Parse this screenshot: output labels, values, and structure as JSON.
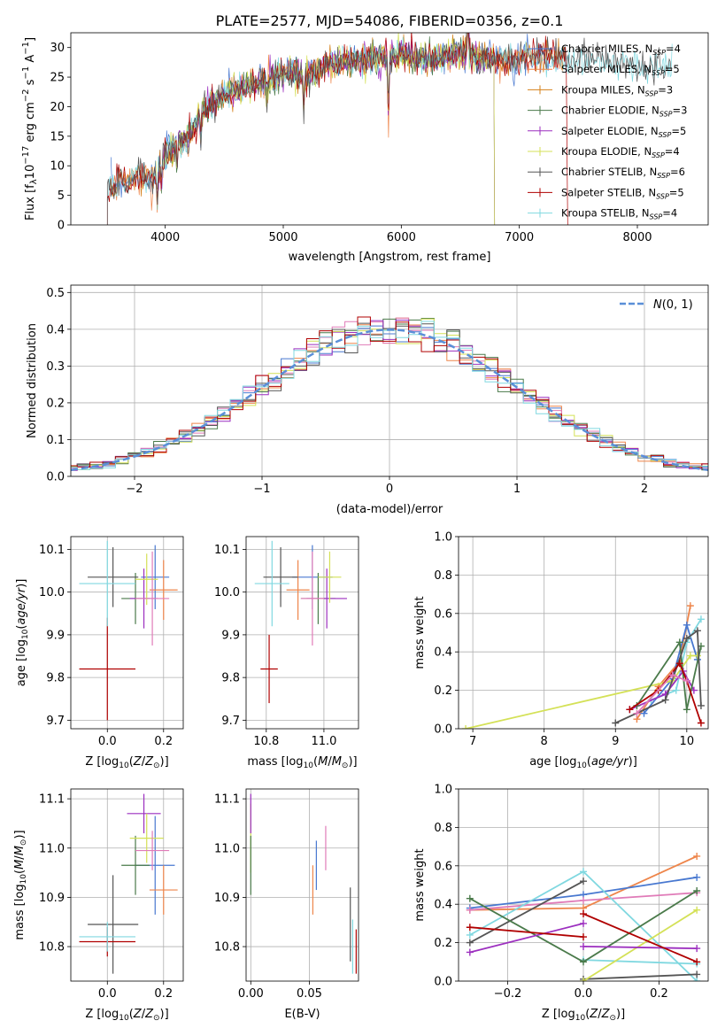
{
  "figure": {
    "title": "PLATE=2577, MJD=54086, FIBERID=0356, z=0.1"
  },
  "colors": {
    "Chabrier MILES": "#4878d0",
    "Salpeter MILES": "#ee854a",
    "Kroupa MILES": "#d5801a",
    "Chabrier ELODIE": "#4a7a4a",
    "Salpeter ELODIE": "#9c2fbf",
    "Kroupa ELODIE": "#d4e157",
    "Chabrier STELIB": "#555555",
    "Salpeter STELIB": "#b00000",
    "Kroupa STELIB": "#80d8e0",
    "pink": "#e07bb8",
    "gaussian": "#5a8fd8"
  },
  "chart_data": [
    {
      "type": "line",
      "title": "PLATE=2577, MJD=54086, FIBERID=0356, z=0.1",
      "xlabel": "wavelength [Angstrom, rest frame]",
      "ylabel": "Flux [f_λ 10^-17 erg cm^-2 s^-1 A^-1]",
      "xlim": [
        3200,
        8600
      ],
      "ylim": [
        0,
        32.5
      ],
      "xticks": [
        4000,
        5000,
        6000,
        7000,
        8000
      ],
      "yticks": [
        0,
        5,
        10,
        15,
        20,
        25,
        30
      ],
      "legend_position": "top-right",
      "legend": [
        "Chabrier MILES, N_SSP=4",
        "Salpeter MILES, N_SSP=5",
        "Kroupa MILES, N_SSP=3",
        "Chabrier ELODIE, N_SSP=3",
        "Salpeter ELODIE, N_SSP=5",
        "Kroupa ELODIE, N_SSP=4",
        "Chabrier STELIB, N_SSP=6",
        "Salpeter STELIB, N_SSP=5",
        "Kroupa STELIB, N_SSP=4"
      ],
      "continuum": {
        "x": [
          3500,
          3700,
          3900,
          4000,
          4200,
          4300,
          4500,
          4800,
          5000,
          5200,
          5400,
          5600,
          5800,
          6000,
          6200,
          6500,
          6800,
          7000,
          7200,
          7400,
          7500,
          8000,
          8300
        ],
        "y": [
          6,
          8,
          8,
          12,
          15,
          19,
          22,
          24,
          26,
          25,
          27,
          28,
          28,
          29,
          28,
          29,
          28,
          28,
          29,
          28,
          28,
          27,
          27
        ]
      }
    },
    {
      "type": "histogram",
      "xlabel": "(data-model)/error",
      "ylabel": "Normed distribution",
      "xlim": [
        -2.5,
        2.5
      ],
      "ylim": [
        0,
        0.52
      ],
      "xticks": [
        -2,
        -1,
        0,
        1,
        2
      ],
      "yticks": [
        0.0,
        0.1,
        0.2,
        0.3,
        0.4,
        0.5
      ],
      "bin_width": 0.1,
      "legend": [
        "N(0,1)"
      ],
      "legend_position": "top-right",
      "series_count": 9
    },
    {
      "type": "scatter",
      "xlabel": "Z [log10(Z/Z⊙)]",
      "ylabel": "age [log10(age/yr)]",
      "xlim": [
        -0.13,
        0.27
      ],
      "ylim": [
        9.68,
        10.13
      ],
      "xticks": [
        0.0,
        0.2
      ],
      "yticks": [
        9.7,
        9.8,
        9.9,
        10.0,
        10.1
      ],
      "points": [
        {
          "series": "Chabrier MILES",
          "x": 0.17,
          "y": 10.035,
          "xerr": 0.05,
          "yerr": 0.075
        },
        {
          "series": "Salpeter MILES",
          "x": 0.2,
          "y": 10.005,
          "xerr": 0.05,
          "yerr": 0.07
        },
        {
          "series": "Chabrier ELODIE",
          "x": 0.1,
          "y": 9.985,
          "xerr": 0.05,
          "yerr": 0.06
        },
        {
          "series": "Salpeter ELODIE",
          "x": 0.13,
          "y": 9.985,
          "xerr": 0.05,
          "yerr": 0.07
        },
        {
          "series": "Kroupa ELODIE",
          "x": 0.14,
          "y": 10.03,
          "xerr": 0.04,
          "yerr": 0.06
        },
        {
          "series": "Chabrier STELIB",
          "x": 0.02,
          "y": 10.035,
          "xerr": 0.09,
          "yerr": 0.07
        },
        {
          "series": "Salpeter STELIB",
          "x": 0.0,
          "y": 9.82,
          "xerr": 0.1,
          "yerr": 0.12
        },
        {
          "series": "Kroupa STELIB",
          "x": 0.0,
          "y": 10.02,
          "xerr": 0.1,
          "yerr": 0.1
        },
        {
          "series": "pink",
          "x": 0.16,
          "y": 9.985,
          "xerr": 0.06,
          "yerr": 0.11
        }
      ]
    },
    {
      "type": "scatter",
      "xlabel": "mass [log10(M/M⊙)]",
      "ylabel": "",
      "xlim": [
        10.73,
        11.12
      ],
      "ylim": [
        9.68,
        10.13
      ],
      "xticks": [
        10.8,
        11.0
      ],
      "yticks": [
        9.7,
        9.8,
        9.9,
        10.0,
        10.1
      ],
      "points": [
        {
          "series": "Chabrier MILES",
          "x": 10.96,
          "y": 10.035,
          "xerr": 0.07,
          "yerr": 0.075
        },
        {
          "series": "Salpeter MILES",
          "x": 10.91,
          "y": 10.005,
          "xerr": 0.04,
          "yerr": 0.07
        },
        {
          "series": "Chabrier ELODIE",
          "x": 10.98,
          "y": 9.985,
          "xerr": 0.06,
          "yerr": 0.06
        },
        {
          "series": "Salpeter ELODIE",
          "x": 11.01,
          "y": 9.985,
          "xerr": 0.07,
          "yerr": 0.07
        },
        {
          "series": "Kroupa ELODIE",
          "x": 11.02,
          "y": 10.035,
          "xerr": 0.04,
          "yerr": 0.06
        },
        {
          "series": "Chabrier STELIB",
          "x": 10.85,
          "y": 10.035,
          "xerr": 0.06,
          "yerr": 0.07
        },
        {
          "series": "Salpeter STELIB",
          "x": 10.81,
          "y": 9.82,
          "xerr": 0.03,
          "yerr": 0.08
        },
        {
          "series": "Kroupa STELIB",
          "x": 10.82,
          "y": 10.02,
          "xerr": 0.06,
          "yerr": 0.1
        },
        {
          "series": "pink",
          "x": 10.96,
          "y": 9.985,
          "xerr": 0.04,
          "yerr": 0.11
        }
      ]
    },
    {
      "type": "line",
      "xlabel": "age [log10(age/yr)]",
      "ylabel": "mass weight",
      "xlim": [
        6.8,
        10.3
      ],
      "ylim": [
        0,
        1.0
      ],
      "xticks": [
        7,
        8,
        9,
        10
      ],
      "yticks": [
        0.0,
        0.2,
        0.4,
        0.6,
        0.8,
        1.0
      ],
      "series": [
        {
          "series": "Salpeter MILES",
          "x": [
            9.3,
            9.6,
            9.9,
            10.05
          ],
          "y": [
            0.05,
            0.22,
            0.35,
            0.64
          ]
        },
        {
          "series": "Chabrier MILES",
          "x": [
            9.4,
            9.8,
            10.0,
            10.15
          ],
          "y": [
            0.08,
            0.26,
            0.54,
            0.36
          ]
        },
        {
          "series": "Kroupa STELIB",
          "x": [
            9.5,
            9.85,
            10.0,
            10.2
          ],
          "y": [
            0.15,
            0.2,
            0.45,
            0.57
          ]
        },
        {
          "series": "Kroupa ELODIE",
          "x": [
            6.9,
            9.8,
            10.05,
            10.15
          ],
          "y": [
            0.0,
            0.25,
            0.38,
            0.38
          ]
        },
        {
          "series": "Salpeter ELODIE",
          "x": [
            9.2,
            9.7,
            9.95,
            10.1
          ],
          "y": [
            0.1,
            0.18,
            0.3,
            0.2
          ]
        },
        {
          "series": "Chabrier ELODIE",
          "x": [
            9.3,
            9.9,
            10.0,
            10.2
          ],
          "y": [
            0.12,
            0.45,
            0.1,
            0.43
          ]
        },
        {
          "series": "Chabrier STELIB",
          "x": [
            9.0,
            9.7,
            10.0,
            10.15,
            10.2
          ],
          "y": [
            0.03,
            0.15,
            0.47,
            0.51,
            0.12
          ]
        },
        {
          "series": "Salpeter STELIB",
          "x": [
            9.2,
            9.6,
            9.9,
            10.0,
            10.2
          ],
          "y": [
            0.1,
            0.2,
            0.34,
            0.25,
            0.03
          ]
        },
        {
          "series": "pink",
          "x": [
            9.3,
            9.8,
            10.0
          ],
          "y": [
            0.08,
            0.28,
            0.25
          ]
        }
      ]
    },
    {
      "type": "scatter",
      "xlabel": "Z [log10(Z/Z⊙)]",
      "ylabel": "mass [log10(M/M⊙)]",
      "xlim": [
        -0.13,
        0.27
      ],
      "ylim": [
        10.73,
        11.12
      ],
      "xticks": [
        0.0,
        0.2
      ],
      "yticks": [
        10.8,
        10.9,
        11.0,
        11.1
      ],
      "points": [
        {
          "series": "Chabrier MILES",
          "x": 0.17,
          "y": 10.965,
          "xerr": 0.07,
          "yerr": 0.1
        },
        {
          "series": "Salpeter MILES",
          "x": 0.2,
          "y": 10.915,
          "xerr": 0.05,
          "yerr": 0.05
        },
        {
          "series": "Chabrier ELODIE",
          "x": 0.1,
          "y": 10.965,
          "xerr": 0.05,
          "yerr": 0.06
        },
        {
          "series": "Salpeter ELODIE",
          "x": 0.13,
          "y": 11.07,
          "xerr": 0.06,
          "yerr": 0.04
        },
        {
          "series": "Kroupa ELODIE",
          "x": 0.14,
          "y": 11.02,
          "xerr": 0.06,
          "yerr": 0.05
        },
        {
          "series": "Chabrier STELIB",
          "x": 0.02,
          "y": 10.845,
          "xerr": 0.09,
          "yerr": 0.1
        },
        {
          "series": "Salpeter STELIB",
          "x": 0.0,
          "y": 10.81,
          "xerr": 0.1,
          "yerr": 0.03
        },
        {
          "series": "Kroupa STELIB",
          "x": 0.0,
          "y": 10.82,
          "xerr": 0.1,
          "yerr": 0.03
        },
        {
          "series": "pink",
          "x": 0.16,
          "y": 10.995,
          "xerr": 0.06,
          "yerr": 0.04
        }
      ]
    },
    {
      "type": "scatter",
      "xlabel": "E(B-V)",
      "ylabel": "",
      "xlim": [
        -0.004,
        0.092
      ],
      "ylim": [
        10.73,
        11.12
      ],
      "xticks": [
        0.0,
        0.05
      ],
      "yticks": [
        10.8,
        10.9,
        11.0,
        11.1
      ],
      "points": [
        {
          "series": "Kroupa ELODIE",
          "x": 0.0,
          "y": 11.02,
          "xerr": 0,
          "yerr": 0.07
        },
        {
          "series": "Salpeter ELODIE",
          "x": 0.0,
          "y": 11.07,
          "xerr": 0,
          "yerr": 0.04
        },
        {
          "series": "Chabrier ELODIE",
          "x": 0.0,
          "y": 10.965,
          "xerr": 0,
          "yerr": 0.06
        },
        {
          "series": "Salpeter MILES",
          "x": 0.053,
          "y": 10.915,
          "xerr": 0,
          "yerr": 0.05
        },
        {
          "series": "Chabrier MILES",
          "x": 0.056,
          "y": 10.965,
          "xerr": 0,
          "yerr": 0.05
        },
        {
          "series": "pink",
          "x": 0.064,
          "y": 11.0,
          "xerr": 0,
          "yerr": 0.045
        },
        {
          "series": "Chabrier STELIB",
          "x": 0.085,
          "y": 10.845,
          "xerr": 0,
          "yerr": 0.075
        },
        {
          "series": "Kroupa STELIB",
          "x": 0.087,
          "y": 10.8,
          "xerr": 0,
          "yerr": 0.055
        },
        {
          "series": "Salpeter STELIB",
          "x": 0.09,
          "y": 10.79,
          "xerr": 0,
          "yerr": 0.045
        }
      ]
    },
    {
      "type": "line",
      "xlabel": "Z [log10(Z/Z⊙)]",
      "ylabel": "mass weight",
      "xlim": [
        -0.33,
        0.33
      ],
      "ylim": [
        0,
        1.0
      ],
      "xticks": [
        -0.2,
        0.0,
        0.2
      ],
      "yticks": [
        0.0,
        0.2,
        0.4,
        0.6,
        0.8,
        1.0
      ],
      "series": [
        {
          "series": "Salpeter MILES",
          "x": [
            -0.3,
            0.0,
            0.3
          ],
          "y": [
            0.37,
            0.38,
            0.65
          ]
        },
        {
          "series": "Chabrier MILES",
          "x": [
            -0.3,
            0.0,
            0.3
          ],
          "y": [
            0.38,
            0.45,
            0.54
          ]
        },
        {
          "series": "pink",
          "x": [
            -0.3,
            0.0,
            0.3
          ],
          "y": [
            0.37,
            0.42,
            0.46
          ]
        },
        {
          "series": "Kroupa STELIB",
          "x": [
            -0.3,
            0.0,
            0.3
          ],
          "y": [
            0.24,
            0.57,
            0.0
          ]
        },
        {
          "series": "Kroupa STELIB",
          "x": [
            0.0,
            0.3
          ],
          "y": [
            0.11,
            0.09
          ]
        },
        {
          "series": "Chabrier STELIB",
          "x": [
            -0.3,
            0.0
          ],
          "y": [
            0.2,
            0.52
          ]
        },
        {
          "series": "Chabrier STELIB",
          "x": [
            0.0,
            0.3
          ],
          "y": [
            0.01,
            0.035
          ]
        },
        {
          "series": "Chabrier ELODIE",
          "x": [
            -0.3,
            0.0,
            0.3
          ],
          "y": [
            0.43,
            0.1,
            0.47
          ]
        },
        {
          "series": "Kroupa ELODIE",
          "x": [
            0.0,
            0.3
          ],
          "y": [
            0.0,
            0.37
          ]
        },
        {
          "series": "Salpeter ELODIE",
          "x": [
            -0.3,
            0.0
          ],
          "y": [
            0.15,
            0.3
          ]
        },
        {
          "series": "Salpeter ELODIE",
          "x": [
            0.0,
            0.3
          ],
          "y": [
            0.18,
            0.17
          ]
        },
        {
          "series": "Salpeter STELIB",
          "x": [
            -0.3,
            0.0
          ],
          "y": [
            0.28,
            0.23
          ]
        },
        {
          "series": "Salpeter STELIB",
          "x": [
            0.0,
            0.3
          ],
          "y": [
            0.35,
            0.1
          ]
        }
      ]
    }
  ]
}
